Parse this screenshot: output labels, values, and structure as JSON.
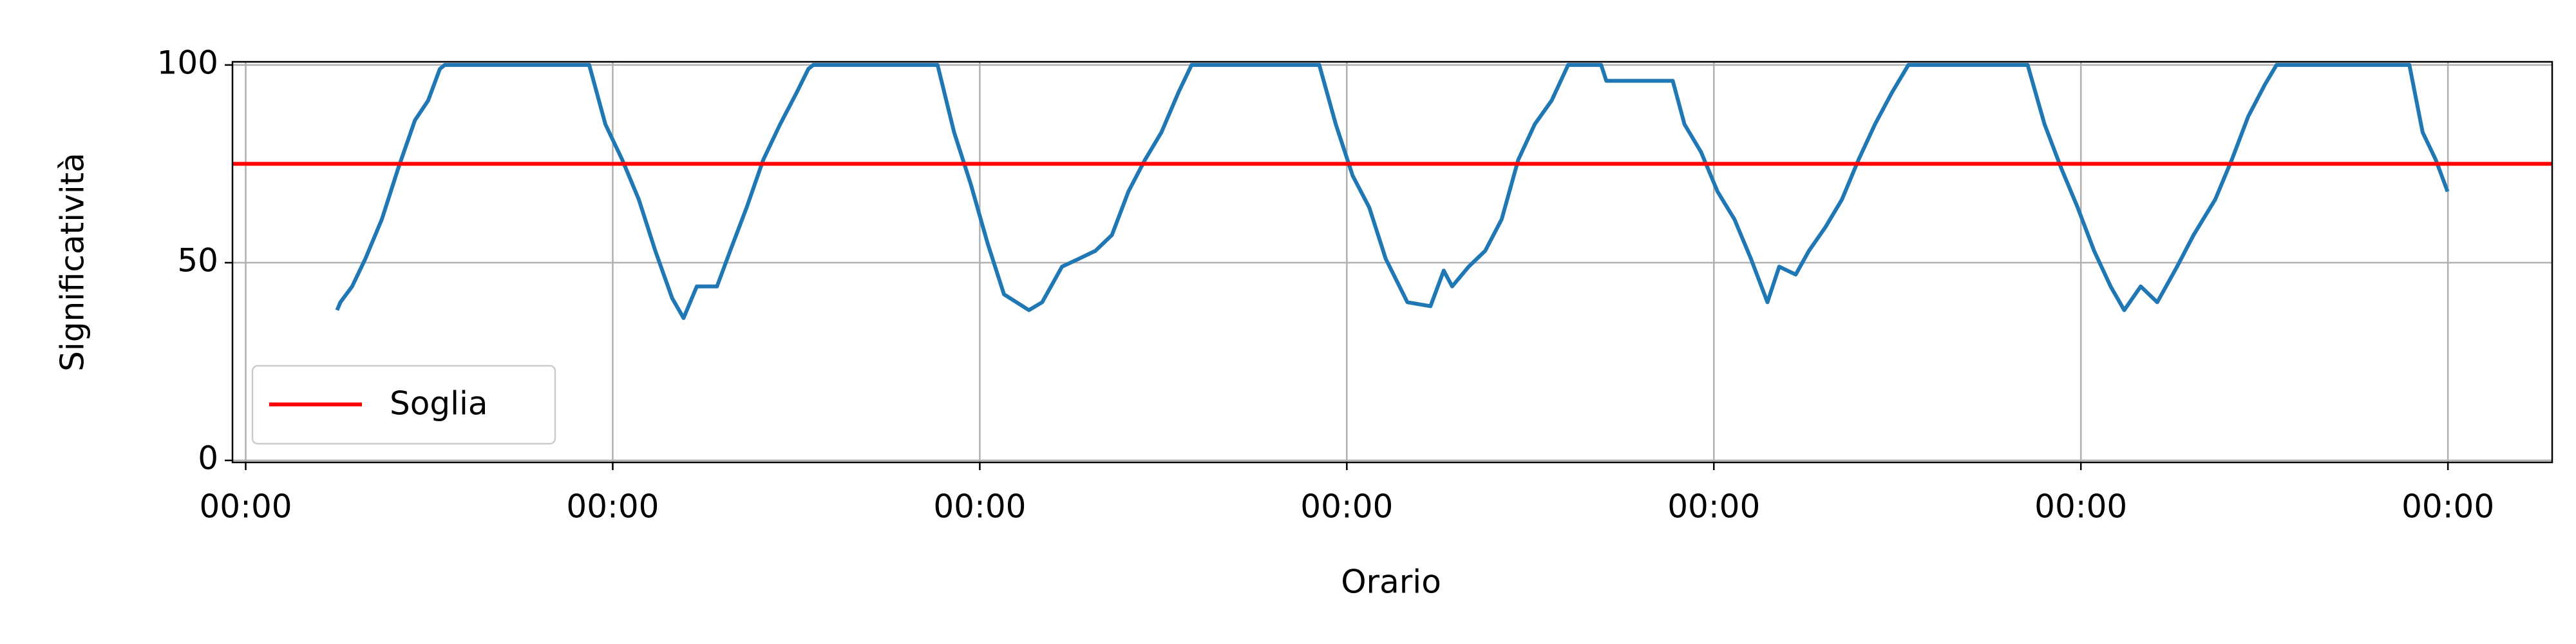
{
  "chart_data": {
    "type": "line",
    "x_label": "Orario",
    "y_label": "Significatività",
    "x": [
      0.249,
      0.258,
      0.29,
      0.326,
      0.371,
      0.416,
      0.461,
      0.497,
      0.529,
      0.542,
      0.936,
      0.98,
      1.026,
      1.071,
      1.116,
      1.162,
      1.193,
      1.229,
      1.284,
      1.32,
      1.365,
      1.41,
      1.456,
      1.501,
      1.533,
      1.546,
      1.885,
      1.93,
      1.975,
      2.021,
      2.066,
      2.134,
      2.17,
      2.224,
      2.27,
      2.315,
      2.36,
      2.405,
      2.45,
      2.495,
      2.541,
      2.577,
      2.925,
      2.97,
      3.016,
      3.061,
      3.106,
      3.165,
      3.228,
      3.264,
      3.287,
      3.332,
      3.377,
      3.422,
      3.467,
      3.512,
      3.558,
      3.603,
      3.693,
      3.707,
      3.888,
      3.92,
      3.965,
      4.01,
      4.056,
      4.101,
      4.146,
      4.178,
      4.223,
      4.259,
      4.304,
      4.349,
      4.394,
      4.439,
      4.485,
      4.53,
      4.855,
      4.901,
      4.946,
      4.991,
      5.036,
      5.081,
      5.118,
      5.163,
      5.208,
      5.262,
      5.307,
      5.366,
      5.411,
      5.456,
      5.501,
      5.533,
      5.895,
      5.931,
      5.967,
      5.999
    ],
    "series": [
      {
        "color": "#1f77b4",
        "values": [
          38,
          40,
          44,
          51,
          61,
          74,
          86,
          91,
          99,
          100,
          100,
          85,
          76,
          66,
          53,
          41,
          36,
          44,
          44,
          53,
          64,
          76,
          85,
          93,
          99,
          100,
          100,
          83,
          70,
          55,
          42,
          38,
          40,
          49,
          51,
          53,
          57,
          68,
          76,
          83,
          93,
          100,
          100,
          85,
          72,
          64,
          51,
          40,
          39,
          48,
          44,
          49,
          53,
          61,
          76,
          85,
          91,
          100,
          100,
          96,
          96,
          85,
          78,
          68,
          61,
          51,
          40,
          49,
          47,
          53,
          59,
          66,
          76,
          85,
          93,
          100,
          100,
          85,
          74,
          64,
          53,
          44,
          38,
          44,
          40,
          49,
          57,
          66,
          76,
          87,
          95,
          100,
          100,
          83,
          76,
          68
        ]
      }
    ],
    "threshold": {
      "name": "Soglia",
      "value": 75,
      "color": "#ff0000"
    },
    "xlim": [
      -0.036,
      6.284
    ],
    "ylim": [
      -0.5,
      100.8
    ],
    "xticks": [
      {
        "value": 0,
        "label": "00:00"
      },
      {
        "value": 1,
        "label": "00:00"
      },
      {
        "value": 2,
        "label": "00:00"
      },
      {
        "value": 3,
        "label": "00:00"
      },
      {
        "value": 4,
        "label": "00:00"
      },
      {
        "value": 5,
        "label": "00:00"
      },
      {
        "value": 6,
        "label": "00:00"
      }
    ],
    "yticks": [
      0,
      50,
      100
    ],
    "grid": true,
    "legend": "lower left"
  }
}
